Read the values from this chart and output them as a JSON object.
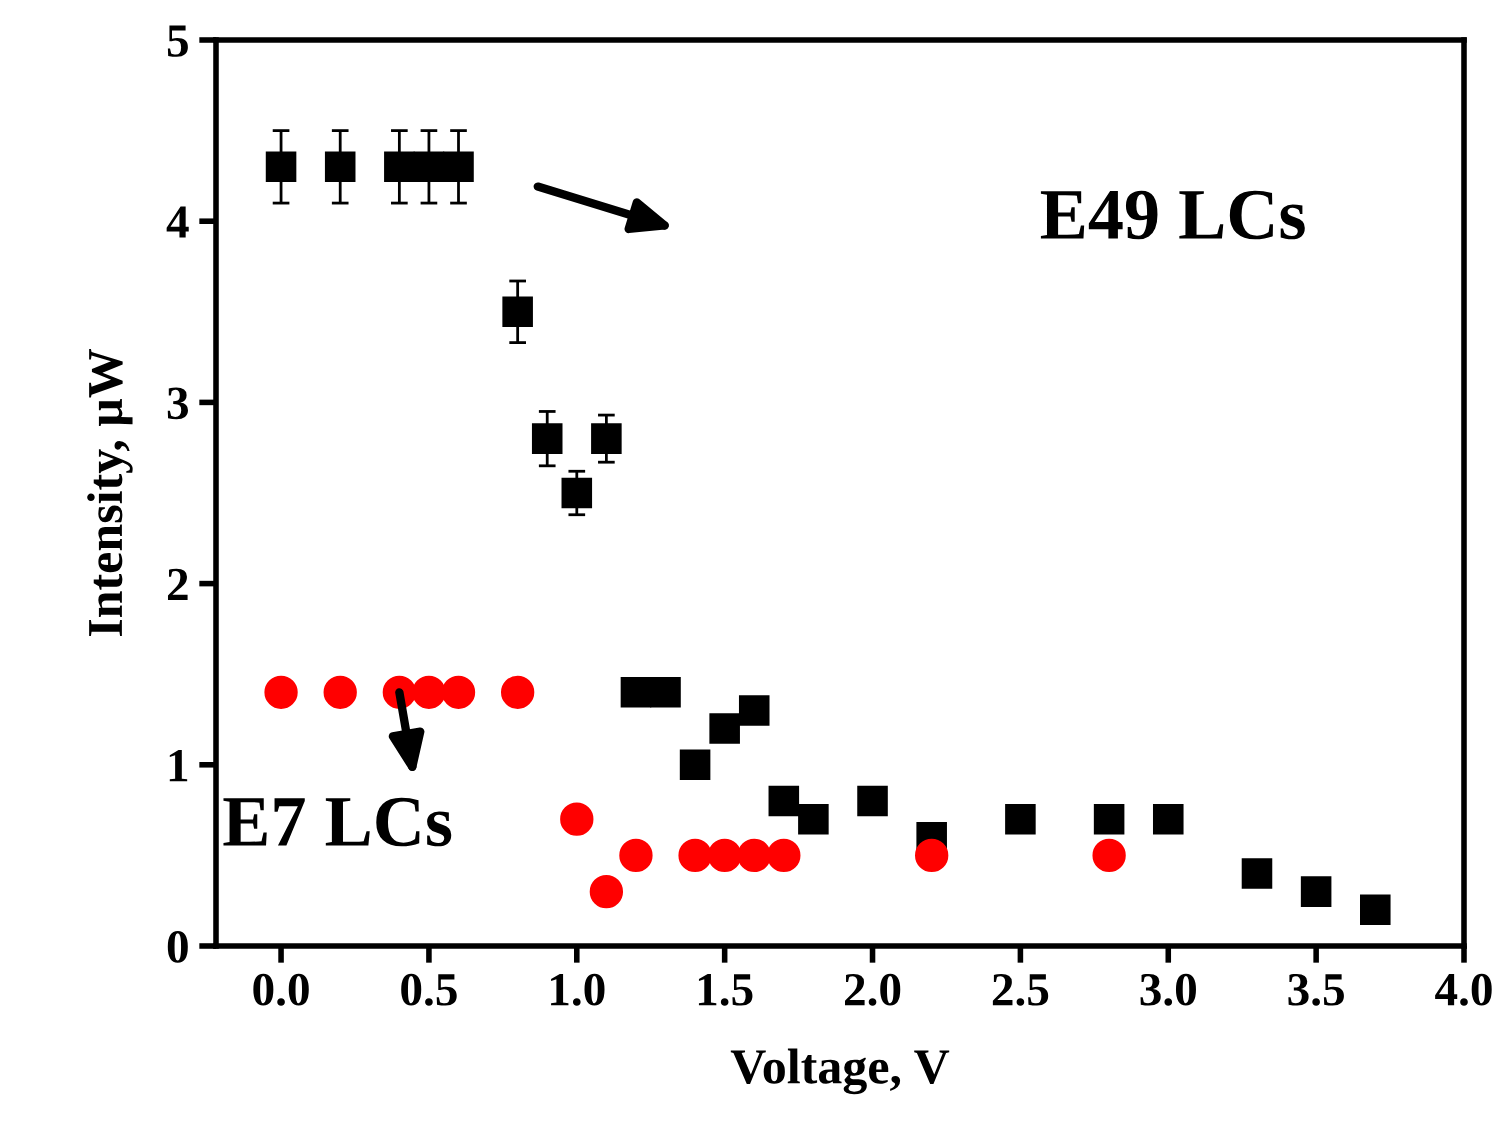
{
  "chart_data": {
    "type": "scatter",
    "xlabel": "Voltage, V",
    "ylabel": "Intensity, μW",
    "xlim": [
      -0.22,
      4.0
    ],
    "ylim": [
      0,
      5
    ],
    "xticks": [
      {
        "value": 0,
        "label": "0.0"
      },
      {
        "value": 0.5,
        "label": "0.5"
      },
      {
        "value": 1,
        "label": "1.0"
      },
      {
        "value": 1.5,
        "label": "1.5"
      },
      {
        "value": 2,
        "label": "2.0"
      },
      {
        "value": 2.5,
        "label": "2.5"
      },
      {
        "value": 3,
        "label": "3.0"
      },
      {
        "value": 3.5,
        "label": "3.5"
      },
      {
        "value": 4,
        "label": "4.0"
      }
    ],
    "yticks": [
      0,
      1,
      2,
      3,
      4,
      5
    ],
    "grid": false,
    "legend": false,
    "series": [
      {
        "color": "#000000",
        "marker": "square",
        "x": [
          0,
          0.2,
          0.4,
          0.5,
          0.6,
          0.8,
          0.9,
          1.0,
          1.1,
          1.2,
          1.3,
          1.4,
          1.5,
          1.6,
          1.7,
          1.8,
          2.0,
          2.2,
          2.5,
          2.8,
          3.0,
          3.3,
          3.5,
          3.7
        ],
        "values": [
          4.3,
          4.3,
          4.3,
          4.3,
          4.3,
          3.5,
          2.8,
          2.5,
          2.8,
          1.4,
          1.4,
          1.0,
          1.2,
          1.3,
          0.8,
          0.7,
          0.8,
          0.6,
          0.7,
          0.7,
          0.7,
          0.4,
          0.3,
          0.2
        ],
        "errors": [
          0.2,
          0.2,
          0.2,
          0.2,
          0.2,
          0.17,
          0.15,
          0.12,
          0.13,
          null,
          null,
          null,
          null,
          null,
          null,
          null,
          null,
          null,
          null,
          null,
          null,
          null,
          null,
          null
        ]
      },
      {
        "color": "#ff0000",
        "marker": "circle",
        "x": [
          0,
          0.2,
          0.4,
          0.5,
          0.6,
          0.8,
          1.0,
          1.1,
          1.2,
          1.4,
          1.5,
          1.6,
          1.7,
          2.2,
          2.8
        ],
        "values": [
          1.4,
          1.4,
          1.4,
          1.4,
          1.4,
          1.4,
          0.7,
          0.3,
          0.5,
          0.5,
          0.5,
          0.5,
          0.5,
          0.5,
          0.5
        ]
      }
    ],
    "annotations": [
      "E49 LCs",
      {
        "text": "E7 LCs",
        "x": 0.4,
        "y": 1.4
      }
    ]
  }
}
